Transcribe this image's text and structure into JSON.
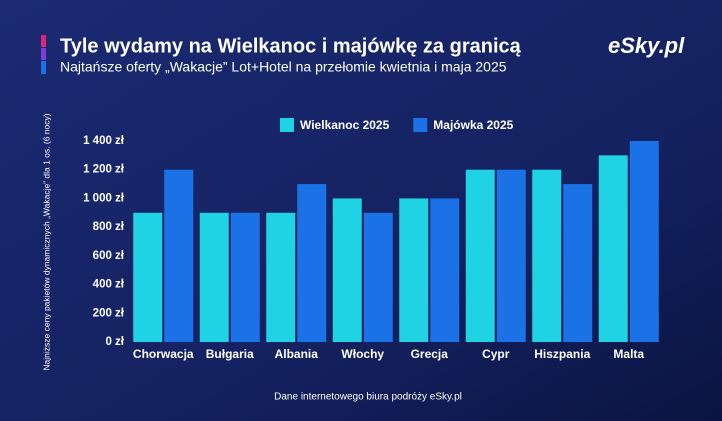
{
  "brand": "eSky.pl",
  "chart_data": {
    "type": "bar",
    "title": "Tyle wydamy na Wielkanoc i majówkę za granicą",
    "subtitle": "Najtańsze oferty „Wakacje” Lot+Hotel na przełomie kwietnia i maja 2025",
    "y_label": "Najniższe ceny pakietów dynamicznych „Wakacje” dla 1 os. (6 nocy)",
    "source": "Dane internetowego biura podróży eSky.pl",
    "categories": [
      "Chorwacja",
      "Bułgaria",
      "Albania",
      "Włochy",
      "Grecja",
      "Cypr",
      "Hiszpania",
      "Malta"
    ],
    "series": [
      {
        "name": "Wielkanoc 2025",
        "color": "#1fd3e4",
        "values": [
          900,
          900,
          900,
          1000,
          1000,
          1200,
          1200,
          1300
        ]
      },
      {
        "name": "Majówka 2025",
        "color": "#1a72e6",
        "values": [
          1200,
          900,
          1100,
          900,
          1000,
          1200,
          1100,
          1400
        ]
      }
    ],
    "ylim": [
      0,
      1400
    ],
    "yticks": [
      {
        "value": 0,
        "label": "0 zł"
      },
      {
        "value": 200,
        "label": "200 zł"
      },
      {
        "value": 400,
        "label": "400 zł"
      },
      {
        "value": 600,
        "label": "600 zł"
      },
      {
        "value": 800,
        "label": "800 zł"
      },
      {
        "value": 1000,
        "label": "1 000 zł"
      },
      {
        "value": 1200,
        "label": "1 200 zł"
      },
      {
        "value": 1400,
        "label": "1 400 zł"
      }
    ],
    "legend": "top"
  }
}
